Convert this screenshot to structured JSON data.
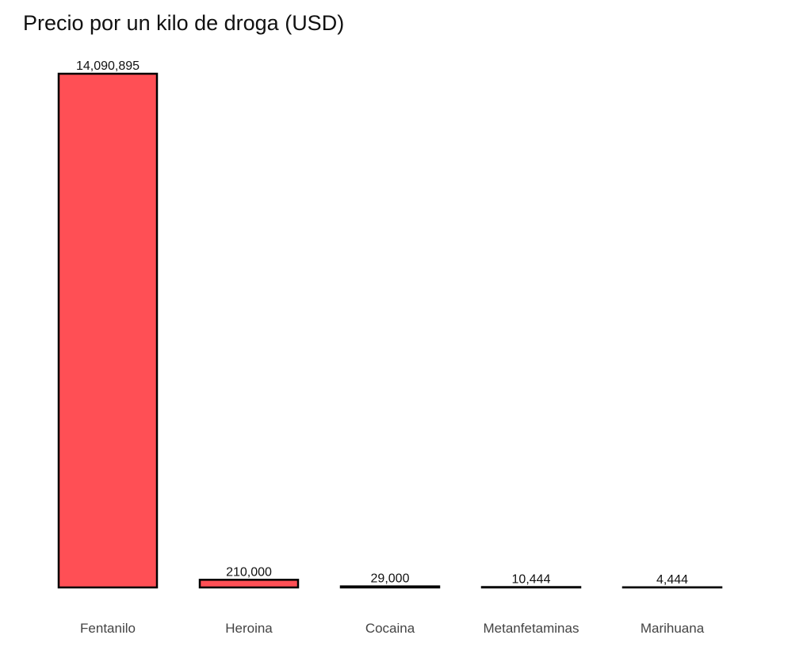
{
  "chart_data": {
    "type": "bar",
    "title": "Precio por un kilo de droga (USD)",
    "categories": [
      "Fentanilo",
      "Heroina",
      "Cocaina",
      "Metanfetaminas",
      "Marihuana"
    ],
    "values": [
      14090895,
      210000,
      29000,
      10444,
      4444
    ],
    "value_labels": [
      "14,090,895",
      "210,000",
      "29,000",
      "10,444",
      "4,444"
    ],
    "xlabel": "",
    "ylabel": "",
    "ylim": [
      0,
      14090895
    ],
    "grid": false,
    "legend": "none",
    "colors": {
      "bar_fill": "#ff4f55",
      "bar_stroke": "#000000"
    }
  }
}
